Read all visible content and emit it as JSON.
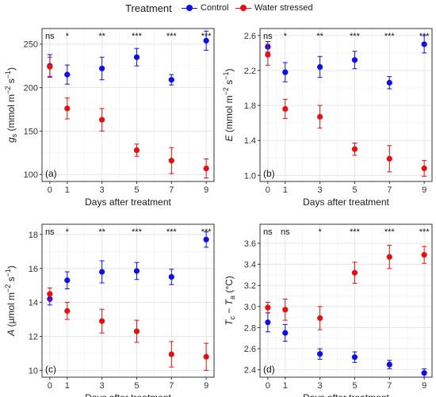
{
  "legend": {
    "title": "Treatment",
    "items": [
      {
        "label": "Control",
        "color": "#1010e6"
      },
      {
        "label": "Water stressed",
        "color": "#e61010"
      }
    ]
  },
  "chart_data": [
    {
      "type": "scatter",
      "panel_label": "(a)",
      "xlabel": "Days after treatment",
      "ylabel": {
        "main": "g",
        "sub": "s",
        "unit": "(mmol m",
        "sup1": "−2",
        "mid": " s",
        "sup2": "−1",
        "end": ")"
      },
      "x": [
        0,
        1,
        3,
        5,
        7,
        9
      ],
      "xticks": [
        "0",
        "1",
        "3",
        "5",
        "7",
        "9"
      ],
      "ylim": [
        92,
        268
      ],
      "yticks": [
        100,
        150,
        200,
        250
      ],
      "yticklabels": [
        "100",
        "150",
        "200",
        "250"
      ],
      "series": [
        {
          "name": "Control",
          "color": "#1010e6",
          "values": [
            225,
            215,
            222,
            235,
            209,
            254
          ],
          "errors": [
            13,
            11,
            13,
            10,
            6,
            11
          ]
        },
        {
          "name": "Water stressed",
          "color": "#e61010",
          "values": [
            224,
            176,
            163,
            128,
            116,
            107
          ],
          "errors": [
            11,
            12,
            13,
            7,
            15,
            11
          ]
        }
      ],
      "significance": [
        "ns",
        "*",
        "**",
        "***",
        "***",
        "***"
      ]
    },
    {
      "type": "scatter",
      "panel_label": "(b)",
      "xlabel": "Days after treatment",
      "ylabel": {
        "main": "E",
        "sub": "",
        "unit": "(mmol m",
        "sup1": "−2",
        "mid": " s",
        "sup2": "−1",
        "end": ")"
      },
      "x": [
        0,
        1,
        3,
        5,
        7,
        9
      ],
      "xticks": [
        "0",
        "1",
        "3",
        "5",
        "7",
        "9"
      ],
      "ylim": [
        0.93,
        2.68
      ],
      "yticks": [
        1.0,
        1.4,
        1.8,
        2.2,
        2.6
      ],
      "yticklabels": [
        "1.0",
        "1.4",
        "1.8",
        "2.2",
        "2.6"
      ],
      "series": [
        {
          "name": "Control",
          "color": "#1010e6",
          "values": [
            2.47,
            2.18,
            2.24,
            2.32,
            2.06,
            2.5
          ],
          "errors": [
            0.06,
            0.11,
            0.12,
            0.1,
            0.07,
            0.1
          ]
        },
        {
          "name": "Water stressed",
          "color": "#e61010",
          "values": [
            2.38,
            1.76,
            1.67,
            1.3,
            1.19,
            1.08
          ],
          "errors": [
            0.12,
            0.11,
            0.13,
            0.07,
            0.15,
            0.09
          ]
        }
      ],
      "significance": [
        "ns",
        "*",
        "**",
        "***",
        "***",
        "***"
      ]
    },
    {
      "type": "scatter",
      "panel_label": "(c)",
      "xlabel": "Days after treatment",
      "ylabel": {
        "main": "A",
        "sub": "",
        "unit": "(µmol m",
        "sup1": "−2",
        "mid": " s",
        "sup2": "−1",
        "end": ")"
      },
      "x": [
        0,
        1,
        3,
        5,
        7,
        9
      ],
      "xticks": [
        "0",
        "1",
        "3",
        "5",
        "7",
        "9"
      ],
      "ylim": [
        9.6,
        18.6
      ],
      "yticks": [
        10,
        12,
        14,
        16,
        18
      ],
      "yticklabels": [
        "10",
        "12",
        "14",
        "16",
        "18"
      ],
      "series": [
        {
          "name": "Control",
          "color": "#1010e6",
          "values": [
            14.2,
            15.3,
            15.8,
            15.85,
            15.5,
            17.7
          ],
          "errors": [
            0.35,
            0.5,
            0.65,
            0.5,
            0.45,
            0.45
          ]
        },
        {
          "name": "Water stressed",
          "color": "#e61010",
          "values": [
            14.5,
            13.5,
            12.9,
            12.3,
            10.95,
            10.8
          ],
          "errors": [
            0.35,
            0.5,
            0.7,
            0.65,
            0.75,
            0.8
          ]
        }
      ],
      "significance": [
        "ns",
        "*",
        "**",
        "***",
        "***",
        "***"
      ]
    },
    {
      "type": "scatter",
      "panel_label": "(d)",
      "xlabel": "Days after treatment",
      "ylabel": {
        "main": "T",
        "sub": "c",
        "unit": "− T",
        "sub2": "a",
        "end": " (°C)"
      },
      "x": [
        0,
        1,
        3,
        5,
        7,
        9
      ],
      "xticks": [
        "0",
        "1",
        "3",
        "5",
        "7",
        "9"
      ],
      "ylim": [
        2.33,
        3.78
      ],
      "yticks": [
        2.4,
        2.6,
        2.8,
        3.0,
        3.2,
        3.4,
        3.6
      ],
      "yticklabels": [
        "2.4",
        "2.6",
        "2.8",
        "3.0",
        "3.2",
        "3.4",
        "3.6"
      ],
      "series": [
        {
          "name": "Control",
          "color": "#1010e6",
          "values": [
            2.85,
            2.75,
            2.55,
            2.52,
            2.45,
            2.37
          ],
          "errors": [
            0.09,
            0.08,
            0.05,
            0.05,
            0.04,
            0.04
          ]
        },
        {
          "name": "Water stressed",
          "color": "#e61010",
          "values": [
            2.99,
            2.97,
            2.89,
            3.32,
            3.47,
            3.49
          ],
          "errors": [
            0.05,
            0.1,
            0.11,
            0.1,
            0.11,
            0.08
          ]
        }
      ],
      "significance": [
        "ns",
        "ns",
        "*",
        "***",
        "***",
        "***"
      ]
    }
  ]
}
